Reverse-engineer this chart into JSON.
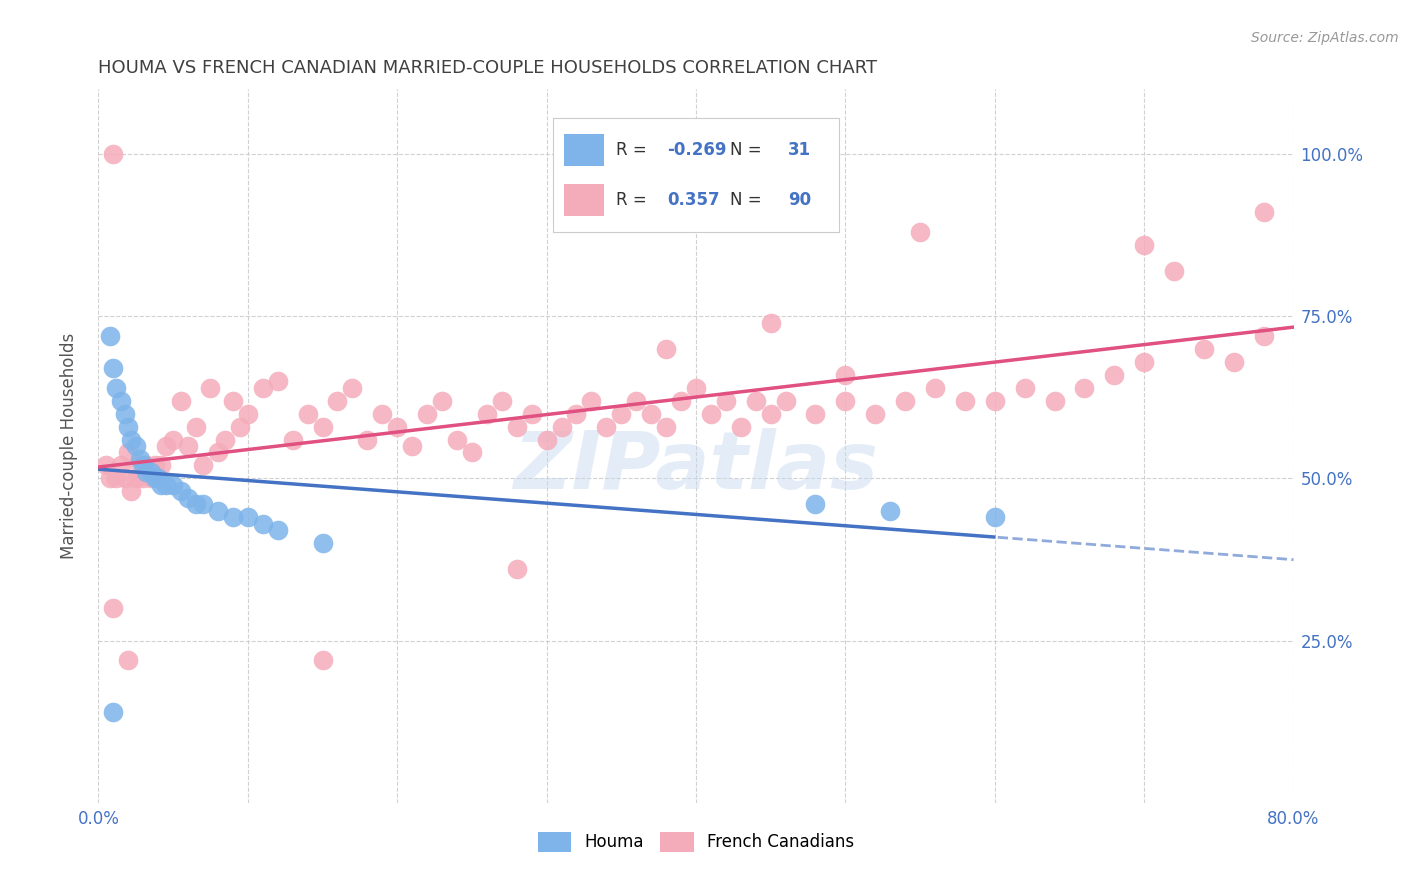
{
  "title": "HOUMA VS FRENCH CANADIAN MARRIED-COUPLE HOUSEHOLDS CORRELATION CHART",
  "source": "Source: ZipAtlas.com",
  "ylabel": "Married-couple Households",
  "xlim": [
    0.0,
    0.8
  ],
  "ylim": [
    0.0,
    1.1
  ],
  "ytick_values": [
    0.25,
    0.5,
    0.75,
    1.0
  ],
  "ytick_labels": [
    "25.0%",
    "50.0%",
    "75.0%",
    "100.0%"
  ],
  "xtick_values": [
    0.0,
    0.1,
    0.2,
    0.3,
    0.4,
    0.5,
    0.6,
    0.7,
    0.8
  ],
  "xtick_labels": [
    "0.0%",
    "",
    "",
    "",
    "",
    "",
    "",
    "",
    "80.0%"
  ],
  "houma_color": "#7EB4EA",
  "french_color": "#F4ACBA",
  "houma_line_color": "#4472C4",
  "french_line_color": "#E05080",
  "title_color": "#404040",
  "source_color": "#999999",
  "label_color": "#4472C4",
  "grid_color": "#CCCCCC",
  "houma_R": -0.269,
  "houma_N": 31,
  "french_R": 0.357,
  "french_N": 90,
  "watermark": "ZIPatlas",
  "background_color": "#FFFFFF",
  "houma_x": [
    0.008,
    0.01,
    0.012,
    0.015,
    0.018,
    0.02,
    0.022,
    0.025,
    0.028,
    0.03,
    0.032,
    0.035,
    0.038,
    0.04,
    0.042,
    0.045,
    0.05,
    0.055,
    0.06,
    0.065,
    0.07,
    0.08,
    0.09,
    0.1,
    0.11,
    0.12,
    0.15,
    0.48,
    0.53,
    0.6,
    0.01
  ],
  "houma_y": [
    0.72,
    0.67,
    0.64,
    0.62,
    0.6,
    0.58,
    0.56,
    0.55,
    0.53,
    0.52,
    0.51,
    0.51,
    0.5,
    0.5,
    0.49,
    0.49,
    0.49,
    0.48,
    0.47,
    0.46,
    0.46,
    0.45,
    0.44,
    0.44,
    0.43,
    0.42,
    0.4,
    0.46,
    0.45,
    0.44,
    0.14
  ],
  "french_x": [
    0.005,
    0.008,
    0.01,
    0.012,
    0.015,
    0.018,
    0.02,
    0.022,
    0.025,
    0.028,
    0.03,
    0.032,
    0.035,
    0.038,
    0.04,
    0.042,
    0.045,
    0.05,
    0.055,
    0.06,
    0.065,
    0.07,
    0.075,
    0.08,
    0.085,
    0.09,
    0.095,
    0.1,
    0.11,
    0.12,
    0.13,
    0.14,
    0.15,
    0.16,
    0.17,
    0.18,
    0.19,
    0.2,
    0.21,
    0.22,
    0.23,
    0.24,
    0.25,
    0.26,
    0.27,
    0.28,
    0.29,
    0.3,
    0.31,
    0.32,
    0.33,
    0.34,
    0.35,
    0.36,
    0.37,
    0.38,
    0.39,
    0.4,
    0.41,
    0.42,
    0.43,
    0.44,
    0.45,
    0.46,
    0.48,
    0.5,
    0.52,
    0.54,
    0.56,
    0.58,
    0.6,
    0.62,
    0.64,
    0.66,
    0.68,
    0.7,
    0.72,
    0.74,
    0.76,
    0.78,
    0.01,
    0.02,
    0.15,
    0.28,
    0.38,
    0.45,
    0.5,
    0.55,
    0.7,
    0.78
  ],
  "french_y": [
    0.52,
    0.5,
    1.0,
    0.5,
    0.52,
    0.5,
    0.54,
    0.48,
    0.5,
    0.52,
    0.5,
    0.52,
    0.5,
    0.52,
    0.5,
    0.52,
    0.55,
    0.56,
    0.62,
    0.55,
    0.58,
    0.52,
    0.64,
    0.54,
    0.56,
    0.62,
    0.58,
    0.6,
    0.64,
    0.65,
    0.56,
    0.6,
    0.58,
    0.62,
    0.64,
    0.56,
    0.6,
    0.58,
    0.55,
    0.6,
    0.62,
    0.56,
    0.54,
    0.6,
    0.62,
    0.58,
    0.6,
    0.56,
    0.58,
    0.6,
    0.62,
    0.58,
    0.6,
    0.62,
    0.6,
    0.58,
    0.62,
    0.64,
    0.6,
    0.62,
    0.58,
    0.62,
    0.6,
    0.62,
    0.6,
    0.62,
    0.6,
    0.62,
    0.64,
    0.62,
    0.62,
    0.64,
    0.62,
    0.64,
    0.66,
    0.68,
    0.82,
    0.7,
    0.68,
    0.72,
    0.3,
    0.22,
    0.22,
    0.36,
    0.7,
    0.74,
    0.66,
    0.88,
    0.86,
    0.91
  ]
}
